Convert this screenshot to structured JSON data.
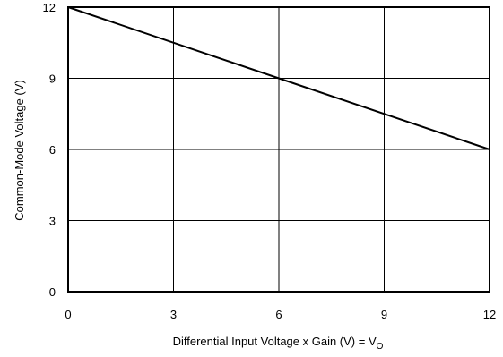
{
  "chart_data": {
    "type": "line",
    "xlabel": "Differential Input Voltage x Gain (V) = V",
    "xlabel_subscript": "O",
    "ylabel": "Common-Mode Voltage (V)",
    "xlim": [
      0,
      12
    ],
    "ylim": [
      0,
      12
    ],
    "x_ticks": [
      0,
      3,
      6,
      9,
      12
    ],
    "y_ticks": [
      0,
      3,
      6,
      9,
      12
    ],
    "grid": true,
    "series": [
      {
        "x": [
          0,
          6,
          12
        ],
        "y": [
          12,
          9,
          6
        ],
        "color": "#000000"
      }
    ]
  }
}
